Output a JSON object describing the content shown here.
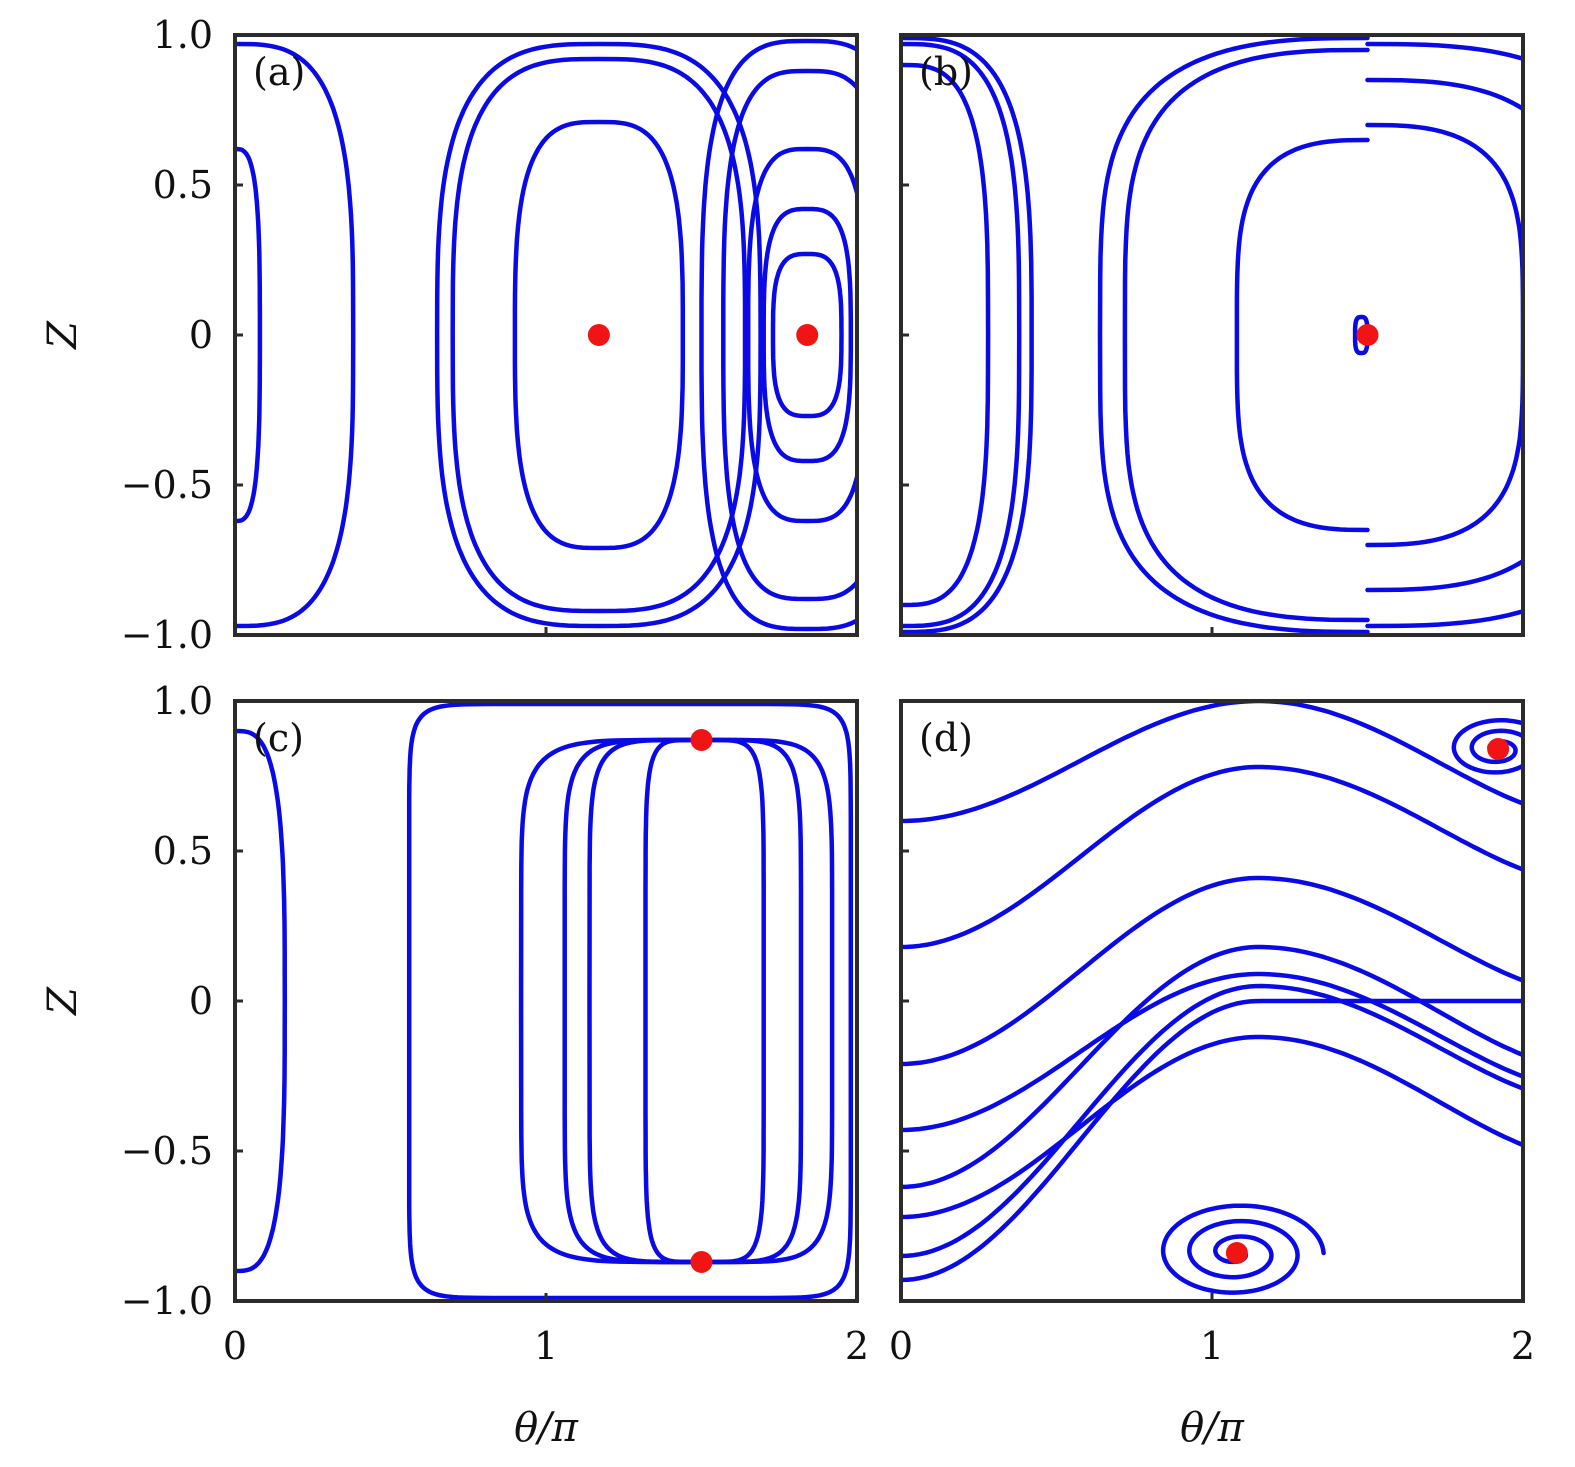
{
  "chart_data": [
    {
      "type": "line",
      "panel_label": "(a)",
      "ylabel": "Z",
      "xlabel": "",
      "xlim": [
        0,
        2
      ],
      "ylim": [
        -1.0,
        1.0
      ],
      "x_ticks": [],
      "y_ticks": [
        "1.0",
        "0.5",
        "0",
        "−0.5",
        "−1.0"
      ],
      "fixed_points": [
        {
          "x": 1.17,
          "y": 0.0
        },
        {
          "x": 1.84,
          "y": 0.0
        }
      ],
      "series": [
        {
          "kind": "ellipse",
          "cx": 1.17,
          "cy": 0.0,
          "rx": 0.27,
          "ry": 0.71
        },
        {
          "kind": "ellipse",
          "cx": 1.17,
          "cy": 0.0,
          "rx": 0.47,
          "ry": 0.92
        },
        {
          "kind": "ellipse",
          "cx": 1.17,
          "cy": 0.0,
          "rx": 0.52,
          "ry": 0.97
        },
        {
          "kind": "ellipse",
          "cx": 1.84,
          "cy": 0.0,
          "rx": 0.11,
          "ry": 0.27
        },
        {
          "kind": "ellipse",
          "cx": 1.84,
          "cy": 0.0,
          "rx": 0.14,
          "ry": 0.42
        },
        {
          "kind": "ellipse",
          "cx": 1.84,
          "cy": 0.0,
          "rx": 0.19,
          "ry": 0.62
        },
        {
          "kind": "ellipse",
          "cx": 1.84,
          "cy": 0.0,
          "rx": 0.27,
          "ry": 0.88
        },
        {
          "kind": "ellipse",
          "cx": 1.84,
          "cy": 0.0,
          "rx": 0.34,
          "ry": 0.98
        },
        {
          "kind": "ellipse",
          "cx": 0.0,
          "cy": 0.0,
          "rx": 0.08,
          "ry": 0.62
        },
        {
          "kind": "ellipse",
          "cx": 0.0,
          "cy": 0.0,
          "rx": 0.38,
          "ry": 0.97
        }
      ]
    },
    {
      "type": "line",
      "panel_label": "(b)",
      "ylabel": "",
      "xlabel": "",
      "xlim": [
        0,
        2
      ],
      "ylim": [
        -1.0,
        1.0
      ],
      "x_ticks": [],
      "y_ticks": [],
      "fixed_points": [
        {
          "x": 1.5,
          "y": 0.0
        }
      ],
      "series": [
        {
          "kind": "lobe",
          "cx": 1.5,
          "dir": -1,
          "w": 0.42,
          "h": 0.65
        },
        {
          "kind": "lobe",
          "cx": 1.5,
          "dir": -1,
          "w": 0.78,
          "h": 0.95
        },
        {
          "kind": "lobe",
          "cx": 1.5,
          "dir": -1,
          "w": 0.86,
          "h": 0.99
        },
        {
          "kind": "lobe",
          "cx": 1.5,
          "dir": 1,
          "w": 0.5,
          "h": 0.7
        },
        {
          "kind": "lobe",
          "cx": 1.5,
          "dir": 1,
          "w": 0.7,
          "h": 0.85
        },
        {
          "kind": "lobe",
          "cx": 1.5,
          "dir": 1,
          "w": 0.9,
          "h": 0.97
        },
        {
          "kind": "ellipse",
          "cx": 0.0,
          "cy": 0.0,
          "rx": 0.28,
          "ry": 0.9
        },
        {
          "kind": "ellipse",
          "cx": 0.0,
          "cy": 0.0,
          "rx": 0.38,
          "ry": 0.97
        },
        {
          "kind": "ellipse",
          "cx": 0.0,
          "cy": 0.0,
          "rx": 0.42,
          "ry": 0.99
        },
        {
          "kind": "ellipse",
          "cx": 1.48,
          "cy": 0.0,
          "rx": 0.02,
          "ry": 0.06
        }
      ]
    },
    {
      "type": "line",
      "panel_label": "(c)",
      "ylabel": "Z",
      "xlabel": "θ/π",
      "xlim": [
        0,
        2
      ],
      "ylim": [
        -1.0,
        1.0
      ],
      "x_ticks": [
        "0",
        "1",
        "2"
      ],
      "y_ticks": [
        "1.0",
        "0.5",
        "0",
        "−0.5",
        "−1.0"
      ],
      "fixed_points": [
        {
          "x": 1.5,
          "y": 0.87
        },
        {
          "x": 1.5,
          "y": -0.87
        }
      ],
      "series": [
        {
          "kind": "vlobe",
          "cx": 1.5,
          "dir": -1,
          "w": 0.18,
          "h": 0.87
        },
        {
          "kind": "vlobe",
          "cx": 1.5,
          "dir": -1,
          "w": 0.36,
          "h": 0.87
        },
        {
          "kind": "vlobe",
          "cx": 1.5,
          "dir": -1,
          "w": 0.44,
          "h": 0.87
        },
        {
          "kind": "vlobe",
          "cx": 1.5,
          "dir": -1,
          "w": 0.58,
          "h": 0.87
        },
        {
          "kind": "vlobe",
          "cx": 1.5,
          "dir": 1,
          "w": 0.2,
          "h": 0.87
        },
        {
          "kind": "vlobe",
          "cx": 1.5,
          "dir": 1,
          "w": 0.32,
          "h": 0.87
        },
        {
          "kind": "vlobe",
          "cx": 1.5,
          "dir": 1,
          "w": 0.42,
          "h": 0.87
        },
        {
          "kind": "box",
          "x0": 0.56,
          "x1": 1.98,
          "y0": -0.99,
          "y1": 0.99
        },
        {
          "kind": "ellipse",
          "cx": 0.0,
          "cy": 0.0,
          "rx": 0.16,
          "ry": 0.9
        }
      ]
    },
    {
      "type": "line",
      "panel_label": "(d)",
      "ylabel": "",
      "xlabel": "θ/π",
      "xlim": [
        0,
        2
      ],
      "ylim": [
        -1.0,
        1.0
      ],
      "x_ticks": [
        "0",
        "1",
        "2"
      ],
      "y_ticks": [],
      "fixed_points": [
        {
          "x": 1.08,
          "y": -0.84
        },
        {
          "x": 1.92,
          "y": 0.84
        }
      ],
      "series": [
        {
          "kind": "wave",
          "y0": -0.93,
          "amp": 0.0,
          "shift": 0.93
        },
        {
          "kind": "wave",
          "y0": -0.43,
          "amp": 0.38,
          "shift": 0.52
        },
        {
          "kind": "wave",
          "y0": -0.21,
          "amp": 0.38,
          "shift": 0.62
        },
        {
          "kind": "wave",
          "y0": 0.18,
          "amp": 0.38,
          "shift": 0.6
        },
        {
          "kind": "wave",
          "y0": 0.6,
          "amp": 0.38,
          "shift": 0.4
        },
        {
          "kind": "wave",
          "y0": -0.72,
          "amp": 0.4,
          "shift": 0.6
        },
        {
          "kind": "wave",
          "y0": -0.62,
          "amp": 0.4,
          "shift": 0.8
        },
        {
          "kind": "wave",
          "y0": -0.85,
          "amp": 0.38,
          "shift": 0.9
        },
        {
          "kind": "spiral",
          "cx": 1.08,
          "cy": -0.84,
          "turns": 3.2,
          "r": 0.3
        },
        {
          "kind": "spiral",
          "cx": 1.92,
          "cy": 0.84,
          "turns": 2.8,
          "r": 0.18
        }
      ]
    }
  ]
}
